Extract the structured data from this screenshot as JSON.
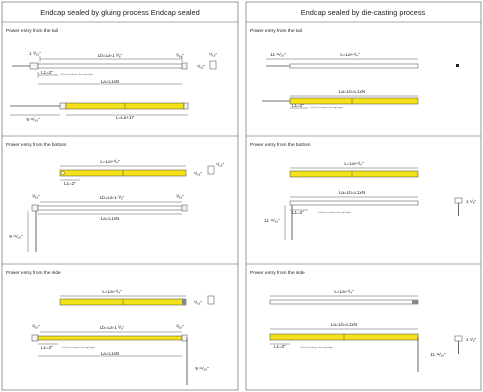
{
  "panels": {
    "left_title": "Endcap sealed by gluing process Endcap sealed",
    "right_title": "Endcap sealed by die-casting process"
  },
  "sections": {
    "tail": "Power entry from the tail",
    "bottom": "Power entry from the bottom",
    "side": "Power entry from the side"
  },
  "left": {
    "tail": {
      "dim_a": "1 ³/₁₆\"",
      "lb": "Lb=La-1 ³/₈\"",
      "dim_b": "³/₁₆\"",
      "dim_c": "⁵/₁₆\"",
      "dim_d": "⁵/₁₆\"",
      "l1": "L1=2\"",
      "note": "(L1) Free cutting in the any length",
      "la": "La=L1xN",
      "lead": "9 ¹¹/₁₆\"",
      "total": "L=La+17"
    },
    "bottom": {
      "total": "L=La+¹/₄\"",
      "dim_a": "⁵/₁₆\"",
      "l1": "L1=2\"",
      "dim_b": "³/₁₆\"",
      "lb": "Lb=La-1 ³/₈\"",
      "dim_c": "³/₁₆\"",
      "la": "La=L1xN",
      "lead": "9 ¹¹/₁₆\""
    },
    "side": {
      "total": "L=La+¹/₄\"",
      "dim_a": "⁵/₁₆\"",
      "dim_b": "³/₁₆\"",
      "lb": "Lb=La-1 ³/₈\"",
      "dim_c": "³/₁₆\"",
      "l1": "L1=2\"",
      "note": "(L1) Free cutting in the any length",
      "la": "La=L1xN",
      "lead": "9 ¹¹/₁₆\""
    }
  },
  "right": {
    "tail": {
      "lead": "11 ¹¹/₁₆\"",
      "total": "L=La+¹/₄\"",
      "la": "La=Lb=L1xN",
      "l1": "L1=2\"",
      "note": "(L1) Free cutting in the any length"
    },
    "bottom": {
      "total": "L=La+¹/₄\"",
      "la": "La=Lb=L1xN",
      "l1": "L1=2\"",
      "note": "(L1) Free cutting in the any length",
      "lead": "11 ¹¹/₁₆\"",
      "dim_side": "1 ¹/₈\""
    },
    "side": {
      "total": "L=La+¹/₄\"",
      "la": "La=Lb=L1xN",
      "l1": "L1=2\"",
      "note": "(L1) Free cutting in the any length",
      "lead": "11 ¹¹/₁₆\"",
      "dim_side": "1 ¹/₈\""
    }
  },
  "colors": {
    "strip_yellow": "#f5e11a",
    "frame": "#555555",
    "line": "#333333"
  }
}
